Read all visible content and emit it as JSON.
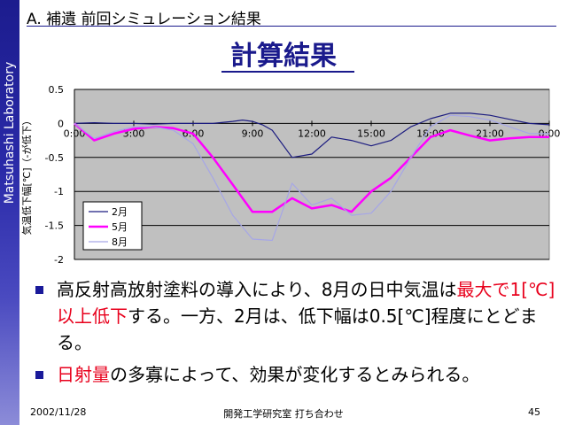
{
  "sidebar": {
    "text": "Matsuhashi Laboratory"
  },
  "header": {
    "section": "A. 補遺 前回シミュレーション結果",
    "title": "計算結果"
  },
  "chart_data": {
    "type": "line",
    "ylabel": "気温低下幅[℃]（-が低下）",
    "x_tick_labels": [
      "0:00",
      "3:00",
      "6:00",
      "9:00",
      "12:00",
      "15:00",
      "18:00",
      "21:00",
      "0:00"
    ],
    "y_tick_labels": [
      "0.5",
      "0",
      "-0.5",
      "-1",
      "-1.5",
      "-2"
    ],
    "y_ticks": [
      0.5,
      0,
      -0.5,
      -1,
      -1.5,
      -2
    ],
    "xlim": [
      0,
      24
    ],
    "ylim": [
      -2,
      0.5
    ],
    "grid": "horizontal",
    "legend_position": "lower-left",
    "series": [
      {
        "name": "2月",
        "color": "#1c1c80",
        "x": [
          0,
          1,
          2,
          3,
          4,
          5,
          6,
          7,
          8,
          8.5,
          9,
          9.5,
          10,
          11,
          12,
          13,
          14,
          15,
          16,
          17,
          18,
          19,
          20,
          21,
          22,
          23,
          24
        ],
        "values": [
          0,
          0.01,
          0,
          0,
          -0.01,
          0,
          0,
          0,
          0.03,
          0.05,
          0.03,
          -0.02,
          -0.1,
          -0.5,
          -0.45,
          -0.2,
          -0.25,
          -0.33,
          -0.25,
          -0.05,
          0.07,
          0.15,
          0.15,
          0.12,
          0.06,
          0,
          -0.02
        ]
      },
      {
        "name": "5月",
        "color": "#ff00ff",
        "x": [
          0,
          1,
          2,
          3,
          4,
          5,
          6,
          7,
          8,
          8.5,
          9,
          10,
          11,
          12,
          13,
          14,
          15,
          16,
          17,
          18,
          19,
          20,
          21,
          22,
          23,
          24
        ],
        "values": [
          0,
          -0.25,
          -0.15,
          -0.08,
          -0.05,
          -0.07,
          -0.15,
          -0.5,
          -0.9,
          -1.1,
          -1.3,
          -1.3,
          -1.1,
          -1.25,
          -1.2,
          -1.3,
          -1.0,
          -0.8,
          -0.5,
          -0.2,
          -0.1,
          -0.18,
          -0.25,
          -0.22,
          -0.2,
          -0.2
        ]
      },
      {
        "name": "8月",
        "color": "#a6a6e6",
        "x": [
          0,
          1,
          2,
          3,
          4,
          5,
          6,
          7,
          8,
          9,
          10,
          11,
          12,
          13,
          14,
          15,
          16,
          17,
          18,
          19,
          20,
          21,
          22,
          23,
          24
        ],
        "values": [
          0,
          -0.22,
          -0.12,
          -0.05,
          -0.05,
          -0.1,
          -0.3,
          -0.8,
          -1.35,
          -1.7,
          -1.72,
          -0.88,
          -1.2,
          -1.1,
          -1.35,
          -1.32,
          -1.0,
          -0.5,
          -0.05,
          0.12,
          0.1,
          0.05,
          -0.05,
          -0.15,
          -0.15
        ]
      }
    ]
  },
  "bullets": [
    {
      "parts": [
        {
          "text": "高反射高放射塗料の導入により、8月の日中気温は",
          "color": "#000000"
        },
        {
          "text": "最大で1[℃]以上低下",
          "color": "#e8001c"
        },
        {
          "text": "する。一方、2月は、低下幅は0.5[℃]程度にとどまる。",
          "color": "#000000"
        }
      ]
    },
    {
      "parts": [
        {
          "text": "日射量",
          "color": "#e8001c"
        },
        {
          "text": "の多寡によって、効果が変化するとみられる。",
          "color": "#000000"
        }
      ]
    }
  ],
  "footer": {
    "date": "2002/11/28",
    "center": "開発工学研究室 打ち合わせ",
    "page": "45"
  }
}
